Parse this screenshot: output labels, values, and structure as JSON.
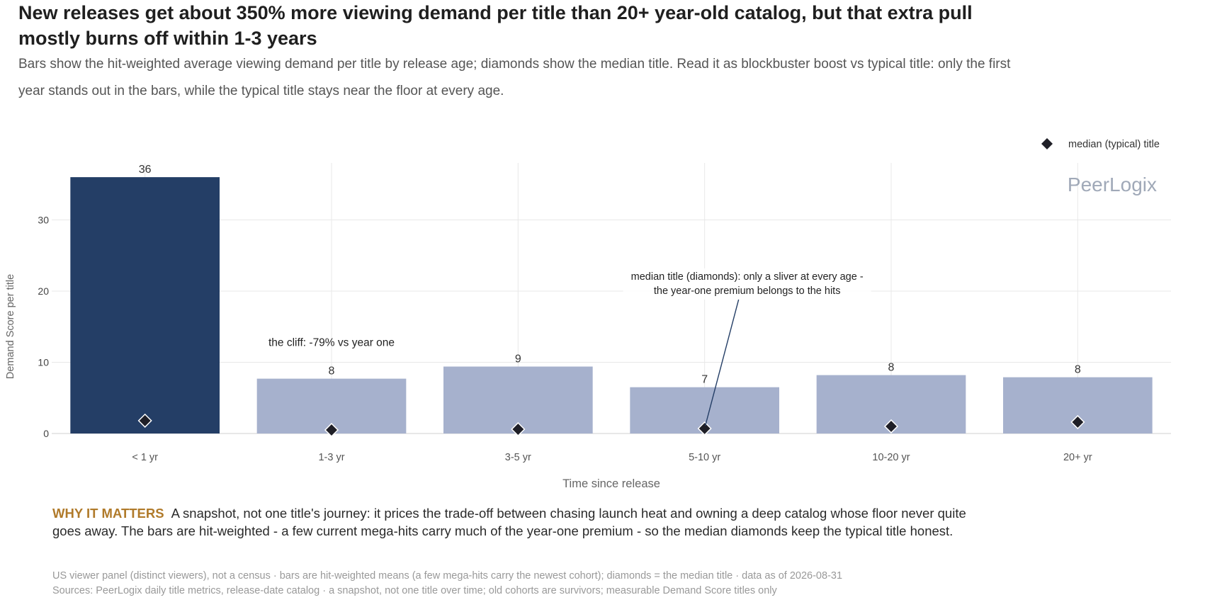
{
  "title": "New releases get about 350% more viewing demand per title than 20+ year-old catalog, but that extra pull mostly burns off within 1-3 years",
  "subtitle": "Bars show the hit-weighted average viewing demand per title by release age; diamonds show the median title. Read it as blockbuster boost vs typical title: only the first year stands out in the bars, while the typical title stays near the floor at every age.",
  "chart_data": {
    "type": "bar",
    "categories": [
      "< 1 yr",
      "1-3 yr",
      "3-5 yr",
      "5-10 yr",
      "10-20 yr",
      "20+ yr"
    ],
    "series": [
      {
        "values": [
          36,
          7.7,
          9.4,
          6.5,
          8.2,
          7.9
        ],
        "data_labels": [
          "36",
          "8",
          "9",
          "7",
          "8",
          "8"
        ]
      },
      {
        "name": "median (typical) title",
        "type": "scatter",
        "marker": "diamond",
        "values": [
          1.8,
          0.5,
          0.6,
          0.7,
          1.0,
          1.6
        ]
      }
    ],
    "xlabel": "Time since release",
    "ylabel": "Demand Score per title",
    "ylim": [
      0,
      38
    ],
    "yticks": [
      0,
      10,
      20,
      30
    ],
    "grid": true,
    "legend_position": "top-right",
    "watermark": "PeerLogix",
    "annotations": [
      {
        "text": "the cliff: -79% vs year one",
        "category": "1-3 yr"
      },
      {
        "lines": [
          "median title (diamonds): only a sliver at every age -",
          "the year-one premium belongs to the hits"
        ],
        "category": "5-10 yr"
      }
    ],
    "colors": {
      "highlight": "#243e66",
      "bar": "#a6b1cd",
      "marker": "#1f1f27",
      "grid": "#e8e8e8"
    }
  },
  "why_label": "WHY IT MATTERS",
  "why_text": "A snapshot, not one title's journey: it prices the trade-off between chasing launch heat and owning a deep catalog whose floor never quite goes away. The bars are hit-weighted - a few current mega-hits carry much of the year-one premium - so the median diamonds keep the typical title honest.",
  "footnote_1": "US viewer panel (distinct viewers), not a census · bars are hit-weighted means (a few mega-hits carry the newest cohort); diamonds = the median title · data as of 2026-08-31",
  "footnote_2": "Sources: PeerLogix daily title metrics, release-date catalog · a snapshot, not one title over time; old cohorts are survivors; measurable Demand Score titles only"
}
